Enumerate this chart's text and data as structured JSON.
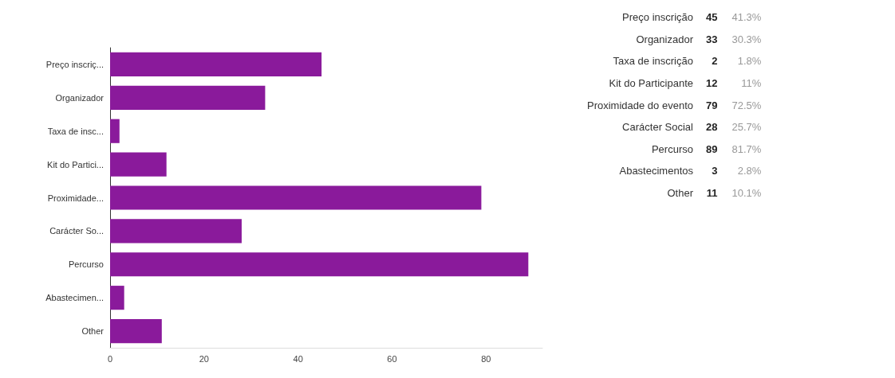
{
  "chart_data": [
    {
      "type": "bar",
      "orientation": "horizontal",
      "categories": [
        "Preço inscriç...",
        "Organizador",
        "Taxa de insc...",
        "Kit do Partici...",
        "Proximidade...",
        "Carácter So...",
        "Percurso",
        "Abastecimen...",
        "Other"
      ],
      "values": [
        45,
        33,
        2,
        12,
        79,
        28,
        89,
        3,
        11
      ],
      "color": "#8a1a9b",
      "xlim": [
        0,
        92
      ],
      "xticks": [
        0,
        20,
        40,
        60,
        80
      ],
      "grid": false
    },
    {
      "type": "other",
      "categories": [
        "Preço inscrição",
        "Organizador",
        "Taxa de inscrição",
        "Kit do Participante",
        "Proximidade do evento",
        "Carácter Social",
        "Percurso",
        "Abastecimentos",
        "Other"
      ],
      "values": [
        45,
        33,
        2,
        12,
        79,
        28,
        89,
        3,
        11
      ],
      "data_labels": true,
      "annotations": [
        "41.3%",
        "30.3%",
        "1.8%",
        "11%",
        "72.5%",
        "25.7%",
        "81.7%",
        "2.8%",
        "10.1%"
      ]
    }
  ]
}
